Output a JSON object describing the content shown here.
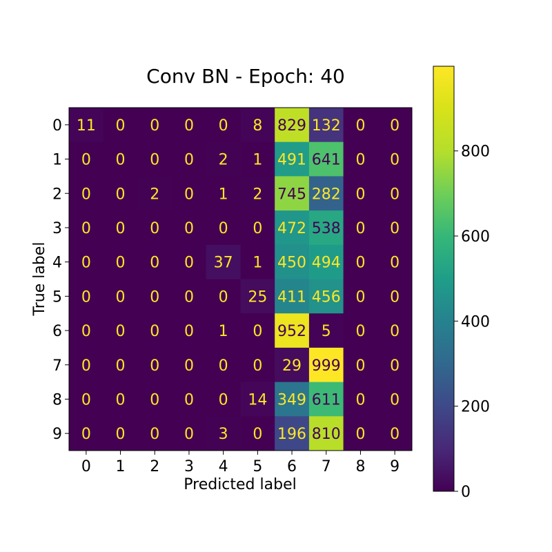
{
  "chart_data": {
    "type": "heatmap",
    "title": "Conv BN - Epoch: 40",
    "xlabel": "Predicted label",
    "ylabel": "True label",
    "x_categories": [
      "0",
      "1",
      "2",
      "3",
      "4",
      "5",
      "6",
      "7",
      "8",
      "9"
    ],
    "y_categories": [
      "0",
      "1",
      "2",
      "3",
      "4",
      "5",
      "6",
      "7",
      "8",
      "9"
    ],
    "matrix": [
      [
        11,
        0,
        0,
        0,
        0,
        8,
        829,
        132,
        0,
        0
      ],
      [
        0,
        0,
        0,
        0,
        2,
        1,
        491,
        641,
        0,
        0
      ],
      [
        0,
        0,
        2,
        0,
        1,
        2,
        745,
        282,
        0,
        0
      ],
      [
        0,
        0,
        0,
        0,
        0,
        0,
        472,
        538,
        0,
        0
      ],
      [
        0,
        0,
        0,
        0,
        37,
        1,
        450,
        494,
        0,
        0
      ],
      [
        0,
        0,
        0,
        0,
        0,
        25,
        411,
        456,
        0,
        0
      ],
      [
        0,
        0,
        0,
        0,
        1,
        0,
        952,
        5,
        0,
        0
      ],
      [
        0,
        0,
        0,
        0,
        0,
        0,
        29,
        999,
        0,
        0
      ],
      [
        0,
        0,
        0,
        0,
        0,
        14,
        349,
        611,
        0,
        0
      ],
      [
        0,
        0,
        0,
        0,
        3,
        0,
        196,
        810,
        0,
        0
      ]
    ],
    "colormap": "viridis",
    "colorbar": {
      "range": [
        0,
        999
      ],
      "ticks": [
        0,
        200,
        400,
        600,
        800
      ]
    },
    "text_colors": {
      "dark_cell": "#fde725",
      "light_cell": "#440154"
    }
  }
}
